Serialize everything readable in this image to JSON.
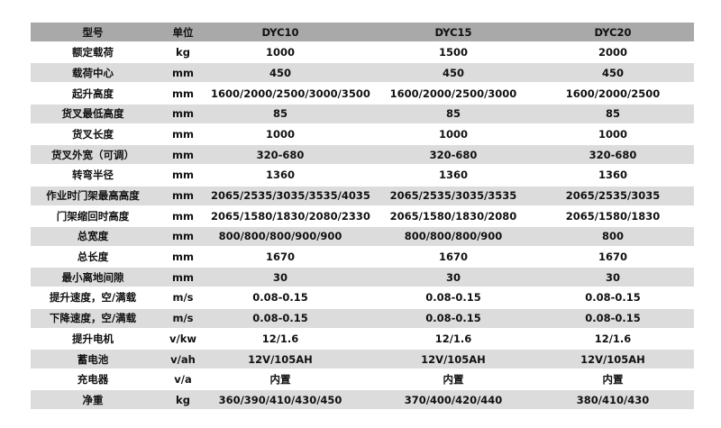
{
  "header": [
    "型号",
    "单位",
    "DYC10",
    "DYC15",
    "DYC20"
  ],
  "rows": [
    [
      "额定载荷",
      "kg",
      "1000",
      "1500",
      "2000"
    ],
    [
      "载荷中心",
      "mm",
      "450",
      "450",
      "450"
    ],
    [
      "起升高度",
      "mm",
      "1600/2000/2500/3000/3500",
      "1600/2000/2500/3000",
      "1600/2000/2500"
    ],
    [
      "货叉最低高度",
      "mm",
      "85",
      "85",
      "85"
    ],
    [
      "货叉长度",
      "mm",
      "1000",
      "1000",
      "1000"
    ],
    [
      "货叉外宽（可调）",
      "mm",
      "320-680",
      "320-680",
      "320-680"
    ],
    [
      "转弯半径",
      "mm",
      "1360",
      "1360",
      "1360"
    ],
    [
      "作业时门架最高高度",
      "mm",
      "2065/2535/3035/3535/4035",
      "2065/2535/3035/3535",
      "2065/2535/3035"
    ],
    [
      "门架缩回时高度",
      "mm",
      "2065/1580/1830/2080/2330",
      "2065/1580/1830/2080",
      "2065/1580/1830"
    ],
    [
      "总宽度",
      "mm",
      "800/800/800/900/900",
      "800/800/800/900",
      "800"
    ],
    [
      "总长度",
      "mm",
      "1670",
      "1670",
      "1670"
    ],
    [
      "最小离地间隙",
      "mm",
      "30",
      "30",
      "30"
    ],
    [
      "提升速度，空/满载",
      "m/s",
      "0.08-0.15",
      "0.08-0.15",
      "0.08-0.15"
    ],
    [
      "下降速度，空/满载",
      "m/s",
      "0.08-0.15",
      "0.08-0.15",
      "0.08-0.15"
    ],
    [
      "提升电机",
      "v/kw",
      "12/1.6",
      "12/1.6",
      "12/1.6"
    ],
    [
      "蓄电池",
      "v/ah",
      "12V/105AH",
      "12V/105AH",
      "12V/105AH"
    ],
    [
      "充电器",
      "v/a",
      "内置",
      "内置",
      "内置"
    ],
    [
      "净重",
      "kg",
      "360/390/410/430/450",
      "370/400/420/440",
      "380/410/430"
    ]
  ],
  "colors": {
    "header_bg": "#a9a9a9",
    "stripe_bg": "#dcdcdc"
  }
}
